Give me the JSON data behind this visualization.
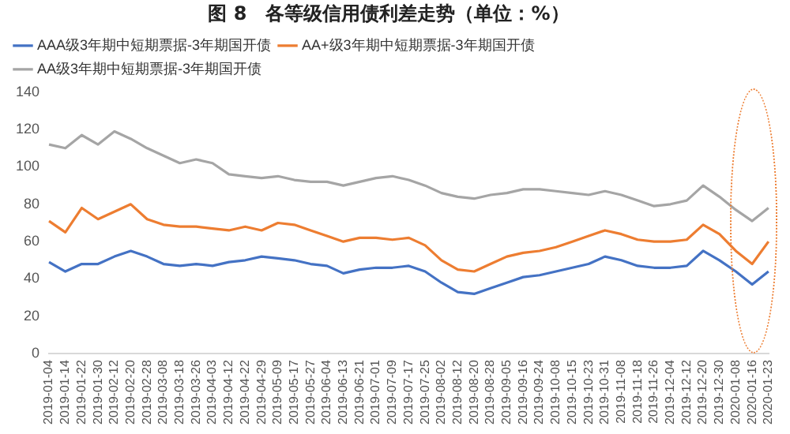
{
  "chart_data": {
    "type": "line",
    "title": "图 8　各等级信用债利差走势（单位：%）",
    "categories": [
      "2019-01-04",
      "2019-01-14",
      "2019-01-22",
      "2019-01-30",
      "2019-02-12",
      "2019-02-20",
      "2019-02-28",
      "2019-03-08",
      "2019-03-18",
      "2019-03-26",
      "2019-04-03",
      "2019-04-12",
      "2019-04-22",
      "2019-04-29",
      "2019-05-09",
      "2019-05-17",
      "2019-05-27",
      "2019-06-04",
      "2019-06-13",
      "2019-06-21",
      "2019-07-01",
      "2019-07-09",
      "2019-07-17",
      "2019-07-25",
      "2019-08-02",
      "2019-08-12",
      "2019-08-20",
      "2019-08-28",
      "2019-09-05",
      "2019-09-16",
      "2019-09-24",
      "2019-10-08",
      "2019-10-15",
      "2019-10-23",
      "2019-10-31",
      "2019-11-08",
      "2019-11-18",
      "2019-11-26",
      "2019-12-04",
      "2019-12-12",
      "2019-12-20",
      "2019-12-30",
      "2020-01-08",
      "2020-01-16",
      "2020-01-23"
    ],
    "series": [
      {
        "name": "AAA级3年期中短期票据-3年期国开债",
        "color": "#4472c4",
        "values": [
          49,
          44,
          48,
          48,
          52,
          55,
          52,
          48,
          47,
          48,
          47,
          49,
          50,
          52,
          51,
          50,
          48,
          47,
          43,
          45,
          46,
          46,
          47,
          44,
          38,
          33,
          32,
          35,
          38,
          41,
          42,
          44,
          46,
          48,
          52,
          50,
          47,
          46,
          46,
          47,
          55,
          50,
          44,
          37,
          44
        ]
      },
      {
        "name": "AA+级3年期中短期票据-3年期国开债",
        "color": "#ed7d31",
        "values": [
          71,
          65,
          78,
          72,
          76,
          80,
          72,
          69,
          68,
          68,
          67,
          66,
          68,
          66,
          70,
          69,
          66,
          63,
          60,
          62,
          62,
          61,
          62,
          58,
          50,
          45,
          44,
          48,
          52,
          54,
          55,
          57,
          60,
          63,
          66,
          64,
          61,
          60,
          60,
          61,
          69,
          64,
          55,
          48,
          60
        ]
      },
      {
        "name": "AA级3年期中短期票据-3年期国开债",
        "color": "#a5a5a5",
        "values": [
          112,
          110,
          117,
          112,
          119,
          115,
          110,
          106,
          102,
          104,
          102,
          96,
          95,
          94,
          95,
          93,
          92,
          92,
          90,
          92,
          94,
          95,
          93,
          90,
          86,
          84,
          83,
          85,
          86,
          88,
          88,
          87,
          86,
          85,
          87,
          85,
          82,
          79,
          80,
          82,
          90,
          84,
          77,
          71,
          78
        ]
      }
    ],
    "ylim": [
      0,
      140
    ],
    "yticks": [
      0,
      20,
      40,
      60,
      80,
      100,
      120,
      140
    ],
    "grid": false,
    "legend": "top",
    "marker": "none",
    "line_style": "solid"
  }
}
